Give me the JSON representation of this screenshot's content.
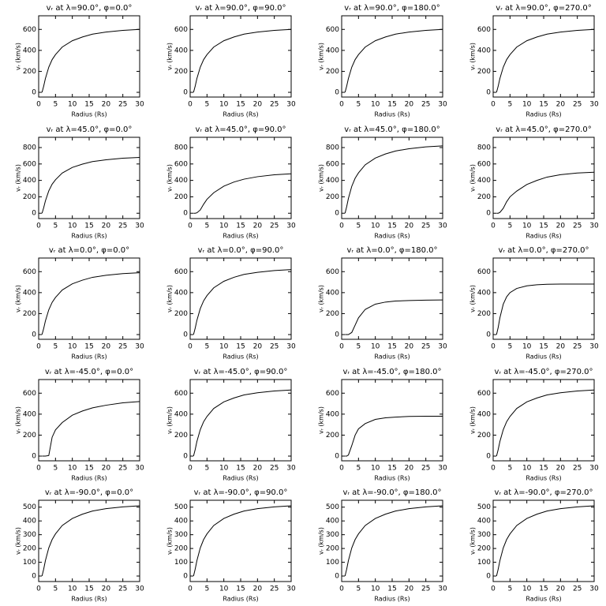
{
  "chart_data": [
    {
      "type": "line",
      "title": "vᵣ at λ=90.0°, φ=0.0°",
      "xlabel": "Radius (Rs)",
      "ylabel": "vᵣ (km/s)",
      "x": [
        1,
        1.5,
        2,
        3,
        4,
        5,
        7,
        10,
        13,
        16,
        20,
        25,
        30
      ],
      "series": [
        {
          "color": "#000000",
          "values": [
            0,
            60,
            132,
            240,
            312,
            360,
            432,
            492,
            528,
            555,
            575,
            591,
            600
          ]
        }
      ],
      "xlim": [
        0,
        30
      ],
      "ylim": [
        -45,
        730
      ],
      "xticks": [
        0,
        5,
        10,
        15,
        20,
        25,
        30
      ],
      "yticks": [
        0,
        200,
        400,
        600
      ]
    },
    {
      "type": "line",
      "title": "vᵣ at λ=90.0°, φ=90.0°",
      "xlabel": "Radius (Rs)",
      "ylabel": "vᵣ (km/s)",
      "x": [
        1,
        1.5,
        2,
        3,
        4,
        5,
        7,
        10,
        13,
        16,
        20,
        25,
        30
      ],
      "series": [
        {
          "color": "#000000",
          "values": [
            0,
            60,
            132,
            240,
            312,
            360,
            432,
            492,
            528,
            555,
            575,
            591,
            600
          ]
        }
      ],
      "xlim": [
        0,
        30
      ],
      "ylim": [
        -45,
        730
      ],
      "xticks": [
        0,
        5,
        10,
        15,
        20,
        25,
        30
      ],
      "yticks": [
        0,
        200,
        400,
        600
      ]
    },
    {
      "type": "line",
      "title": "vᵣ at λ=90.0°, φ=180.0°",
      "xlabel": "Radius (Rs)",
      "ylabel": "vᵣ (km/s)",
      "x": [
        1,
        1.5,
        2,
        3,
        4,
        5,
        7,
        10,
        13,
        16,
        20,
        25,
        30
      ],
      "series": [
        {
          "color": "#000000",
          "values": [
            0,
            60,
            132,
            240,
            312,
            360,
            432,
            492,
            528,
            555,
            575,
            591,
            600
          ]
        }
      ],
      "xlim": [
        0,
        30
      ],
      "ylim": [
        -45,
        730
      ],
      "xticks": [
        0,
        5,
        10,
        15,
        20,
        25,
        30
      ],
      "yticks": [
        0,
        200,
        400,
        600
      ]
    },
    {
      "type": "line",
      "title": "vᵣ at λ=90.0°, φ=270.0°",
      "xlabel": "Radius (Rs)",
      "ylabel": "vᵣ (km/s)",
      "x": [
        1,
        1.5,
        2,
        3,
        4,
        5,
        7,
        10,
        13,
        16,
        20,
        25,
        30
      ],
      "series": [
        {
          "color": "#000000",
          "values": [
            0,
            60,
            132,
            240,
            312,
            360,
            432,
            492,
            528,
            555,
            575,
            591,
            600
          ]
        }
      ],
      "xlim": [
        0,
        30
      ],
      "ylim": [
        -45,
        730
      ],
      "xticks": [
        0,
        5,
        10,
        15,
        20,
        25,
        30
      ],
      "yticks": [
        0,
        200,
        400,
        600
      ]
    },
    {
      "type": "line",
      "title": "vᵣ at λ=45.0°, φ=0.0°",
      "xlabel": "Radius (Rs)",
      "ylabel": "vᵣ (km/s)",
      "x": [
        1,
        1.5,
        2,
        3,
        4,
        5,
        7,
        10,
        13,
        16,
        20,
        25,
        30
      ],
      "series": [
        {
          "color": "#000000",
          "values": [
            0,
            68,
            150,
            272,
            354,
            408,
            490,
            558,
            598,
            629,
            651,
            670,
            680
          ]
        }
      ],
      "xlim": [
        0,
        30
      ],
      "ylim": [
        -65,
        925
      ],
      "xticks": [
        0,
        5,
        10,
        15,
        20,
        25,
        30
      ],
      "yticks": [
        0,
        200,
        400,
        600,
        800
      ]
    },
    {
      "type": "line",
      "title": "vᵣ at λ=45.0°, φ=90.0°",
      "xlabel": "Radius (Rs)",
      "ylabel": "vᵣ (km/s)",
      "x": [
        1,
        1.5,
        2,
        3,
        4,
        5,
        7,
        10,
        13,
        16,
        20,
        25,
        30
      ],
      "series": [
        {
          "color": "#000000",
          "values": [
            0,
            0,
            5,
            40,
            110,
            170,
            250,
            330,
            380,
            415,
            445,
            468,
            480
          ]
        }
      ],
      "xlim": [
        0,
        30
      ],
      "ylim": [
        -65,
        925
      ],
      "xticks": [
        0,
        5,
        10,
        15,
        20,
        25,
        30
      ],
      "yticks": [
        0,
        200,
        400,
        600,
        800
      ]
    },
    {
      "type": "line",
      "title": "vᵣ at λ=45.0°, φ=180.0°",
      "xlabel": "Radius (Rs)",
      "ylabel": "vᵣ (km/s)",
      "x": [
        1,
        1.5,
        2,
        3,
        4,
        5,
        7,
        10,
        13,
        16,
        20,
        25,
        30
      ],
      "series": [
        {
          "color": "#000000",
          "values": [
            0,
            82,
            180,
            328,
            426,
            492,
            590,
            672,
            722,
            758,
            786,
            808,
            820
          ]
        }
      ],
      "xlim": [
        0,
        30
      ],
      "ylim": [
        -65,
        925
      ],
      "xticks": [
        0,
        5,
        10,
        15,
        20,
        25,
        30
      ],
      "yticks": [
        0,
        200,
        400,
        600,
        800
      ]
    },
    {
      "type": "line",
      "title": "vᵣ at λ=45.0°, φ=270.0°",
      "xlabel": "Radius (Rs)",
      "ylabel": "vᵣ (km/s)",
      "x": [
        1,
        1.5,
        2,
        3,
        4,
        5,
        7,
        10,
        13,
        16,
        20,
        25,
        30
      ],
      "series": [
        {
          "color": "#000000",
          "values": [
            0,
            0,
            10,
            60,
            140,
            200,
            270,
            350,
            400,
            440,
            470,
            490,
            500
          ]
        }
      ],
      "xlim": [
        0,
        30
      ],
      "ylim": [
        -65,
        925
      ],
      "xticks": [
        0,
        5,
        10,
        15,
        20,
        25,
        30
      ],
      "yticks": [
        0,
        200,
        400,
        600,
        800
      ]
    },
    {
      "type": "line",
      "title": "vᵣ at λ=0.0°, φ=0.0°",
      "xlabel": "Radius (Rs)",
      "ylabel": "vᵣ (km/s)",
      "x": [
        1,
        1.5,
        2,
        3,
        4,
        5,
        7,
        10,
        13,
        16,
        20,
        25,
        30
      ],
      "series": [
        {
          "color": "#000000",
          "values": [
            0,
            59,
            130,
            236,
            307,
            354,
            425,
            484,
            519,
            546,
            565,
            581,
            590
          ]
        }
      ],
      "xlim": [
        0,
        30
      ],
      "ylim": [
        -45,
        730
      ],
      "xticks": [
        0,
        5,
        10,
        15,
        20,
        25,
        30
      ],
      "yticks": [
        0,
        200,
        400,
        600
      ]
    },
    {
      "type": "line",
      "title": "vᵣ at λ=0.0°, φ=90.0°",
      "xlabel": "Radius (Rs)",
      "ylabel": "vᵣ (km/s)",
      "x": [
        1,
        1.5,
        2,
        3,
        4,
        5,
        7,
        10,
        13,
        16,
        20,
        25,
        30
      ],
      "series": [
        {
          "color": "#000000",
          "values": [
            0,
            62,
            136,
            248,
            322,
            372,
            446,
            508,
            546,
            574,
            594,
            611,
            620
          ]
        }
      ],
      "xlim": [
        0,
        30
      ],
      "ylim": [
        -45,
        730
      ],
      "xticks": [
        0,
        5,
        10,
        15,
        20,
        25,
        30
      ],
      "yticks": [
        0,
        200,
        400,
        600
      ]
    },
    {
      "type": "line",
      "title": "vᵣ at λ=0.0°, φ=180.0°",
      "xlabel": "Radius (Rs)",
      "ylabel": "vᵣ (km/s)",
      "x": [
        1,
        1.5,
        2,
        3,
        4,
        5,
        7,
        10,
        13,
        16,
        20,
        25,
        30
      ],
      "series": [
        {
          "color": "#000000",
          "values": [
            0,
            0,
            0,
            20,
            90,
            160,
            240,
            290,
            310,
            320,
            325,
            328,
            330
          ]
        }
      ],
      "xlim": [
        0,
        30
      ],
      "ylim": [
        -45,
        730
      ],
      "xticks": [
        0,
        5,
        10,
        15,
        20,
        25,
        30
      ],
      "yticks": [
        0,
        200,
        400,
        600
      ]
    },
    {
      "type": "line",
      "title": "vᵣ at λ=0.0°, φ=270.0°",
      "xlabel": "Radius (Rs)",
      "ylabel": "vᵣ (km/s)",
      "x": [
        1,
        1.5,
        2,
        3,
        4,
        5,
        7,
        10,
        13,
        16,
        20,
        25,
        30
      ],
      "series": [
        {
          "color": "#000000",
          "values": [
            0,
            70,
            160,
            290,
            360,
            400,
            440,
            465,
            475,
            480,
            482,
            482,
            482
          ]
        }
      ],
      "xlim": [
        0,
        30
      ],
      "ylim": [
        -45,
        730
      ],
      "xticks": [
        0,
        5,
        10,
        15,
        20,
        25,
        30
      ],
      "yticks": [
        0,
        200,
        400,
        600
      ]
    },
    {
      "type": "line",
      "title": "vᵣ at λ=-45.0°, φ=0.0°",
      "xlabel": "Radius (Rs)",
      "ylabel": "vᵣ (km/s)",
      "x": [
        1,
        1.5,
        2,
        3,
        4,
        5,
        7,
        10,
        13,
        16,
        20,
        25,
        30
      ],
      "series": [
        {
          "color": "#000000",
          "values": [
            0,
            0,
            0,
            5,
            180,
            250,
            320,
            390,
            430,
            460,
            485,
            508,
            520
          ]
        }
      ],
      "xlim": [
        0,
        30
      ],
      "ylim": [
        -45,
        730
      ],
      "xticks": [
        0,
        5,
        10,
        15,
        20,
        25,
        30
      ],
      "yticks": [
        0,
        200,
        400,
        600
      ]
    },
    {
      "type": "line",
      "title": "vᵣ at λ=-45.0°, φ=90.0°",
      "xlabel": "Radius (Rs)",
      "ylabel": "vᵣ (km/s)",
      "x": [
        1,
        1.5,
        2,
        3,
        4,
        5,
        7,
        10,
        13,
        16,
        20,
        25,
        30
      ],
      "series": [
        {
          "color": "#000000",
          "values": [
            0,
            63,
            139,
            252,
            328,
            378,
            454,
            517,
            554,
            583,
            604,
            621,
            630
          ]
        }
      ],
      "xlim": [
        0,
        30
      ],
      "ylim": [
        -45,
        730
      ],
      "xticks": [
        0,
        5,
        10,
        15,
        20,
        25,
        30
      ],
      "yticks": [
        0,
        200,
        400,
        600
      ]
    },
    {
      "type": "line",
      "title": "vᵣ at λ=-45.0°, φ=180.0°",
      "xlabel": "Radius (Rs)",
      "ylabel": "vᵣ (km/s)",
      "x": [
        1,
        1.5,
        2,
        3,
        4,
        5,
        7,
        10,
        13,
        16,
        20,
        25,
        30
      ],
      "series": [
        {
          "color": "#000000",
          "values": [
            0,
            0,
            10,
            100,
            200,
            260,
            310,
            350,
            365,
            372,
            378,
            380,
            380
          ]
        }
      ],
      "xlim": [
        0,
        30
      ],
      "ylim": [
        -45,
        730
      ],
      "xticks": [
        0,
        5,
        10,
        15,
        20,
        25,
        30
      ],
      "yticks": [
        0,
        200,
        400,
        600
      ]
    },
    {
      "type": "line",
      "title": "vᵣ at λ=-45.0°, φ=270.0°",
      "xlabel": "Radius (Rs)",
      "ylabel": "vᵣ (km/s)",
      "x": [
        1,
        1.5,
        2,
        3,
        4,
        5,
        7,
        10,
        13,
        16,
        20,
        25,
        30
      ],
      "series": [
        {
          "color": "#000000",
          "values": [
            0,
            63,
            139,
            252,
            328,
            378,
            454,
            517,
            554,
            583,
            604,
            621,
            630
          ]
        }
      ],
      "xlim": [
        0,
        30
      ],
      "ylim": [
        -45,
        730
      ],
      "xticks": [
        0,
        5,
        10,
        15,
        20,
        25,
        30
      ],
      "yticks": [
        0,
        200,
        400,
        600
      ]
    },
    {
      "type": "line",
      "title": "vᵣ at λ=-90.0°, φ=0.0°",
      "xlabel": "Radius (Rs)",
      "ylabel": "vᵣ (km/s)",
      "x": [
        1,
        1.5,
        2,
        3,
        4,
        5,
        7,
        10,
        13,
        16,
        20,
        25,
        30
      ],
      "series": [
        {
          "color": "#000000",
          "values": [
            0,
            51,
            112,
            204,
            265,
            306,
            367,
            418,
            449,
            472,
            489,
            502,
            510
          ]
        }
      ],
      "xlim": [
        0,
        30
      ],
      "ylim": [
        -40,
        550
      ],
      "xticks": [
        0,
        5,
        10,
        15,
        20,
        25,
        30
      ],
      "yticks": [
        0,
        100,
        200,
        300,
        400,
        500
      ]
    },
    {
      "type": "line",
      "title": "vᵣ at λ=-90.0°, φ=90.0°",
      "xlabel": "Radius (Rs)",
      "ylabel": "vᵣ (km/s)",
      "x": [
        1,
        1.5,
        2,
        3,
        4,
        5,
        7,
        10,
        13,
        16,
        20,
        25,
        30
      ],
      "series": [
        {
          "color": "#000000",
          "values": [
            0,
            51,
            112,
            204,
            265,
            306,
            367,
            418,
            449,
            472,
            489,
            502,
            510
          ]
        }
      ],
      "xlim": [
        0,
        30
      ],
      "ylim": [
        -40,
        550
      ],
      "xticks": [
        0,
        5,
        10,
        15,
        20,
        25,
        30
      ],
      "yticks": [
        0,
        100,
        200,
        300,
        400,
        500
      ]
    },
    {
      "type": "line",
      "title": "vᵣ at λ=-90.0°, φ=180.0°",
      "xlabel": "Radius (Rs)",
      "ylabel": "vᵣ (km/s)",
      "x": [
        1,
        1.5,
        2,
        3,
        4,
        5,
        7,
        10,
        13,
        16,
        20,
        25,
        30
      ],
      "series": [
        {
          "color": "#000000",
          "values": [
            0,
            51,
            112,
            204,
            265,
            306,
            367,
            418,
            449,
            472,
            489,
            502,
            510
          ]
        }
      ],
      "xlim": [
        0,
        30
      ],
      "ylim": [
        -40,
        550
      ],
      "xticks": [
        0,
        5,
        10,
        15,
        20,
        25,
        30
      ],
      "yticks": [
        0,
        100,
        200,
        300,
        400,
        500
      ]
    },
    {
      "type": "line",
      "title": "vᵣ at λ=-90.0°, φ=270.0°",
      "xlabel": "Radius (Rs)",
      "ylabel": "vᵣ (km/s)",
      "x": [
        1,
        1.5,
        2,
        3,
        4,
        5,
        7,
        10,
        13,
        16,
        20,
        25,
        30
      ],
      "series": [
        {
          "color": "#000000",
          "values": [
            0,
            51,
            112,
            204,
            265,
            306,
            367,
            418,
            449,
            472,
            489,
            502,
            510
          ]
        }
      ],
      "xlim": [
        0,
        30
      ],
      "ylim": [
        -40,
        550
      ],
      "xticks": [
        0,
        5,
        10,
        15,
        20,
        25,
        30
      ],
      "yticks": [
        0,
        100,
        200,
        300,
        400,
        500
      ]
    }
  ]
}
